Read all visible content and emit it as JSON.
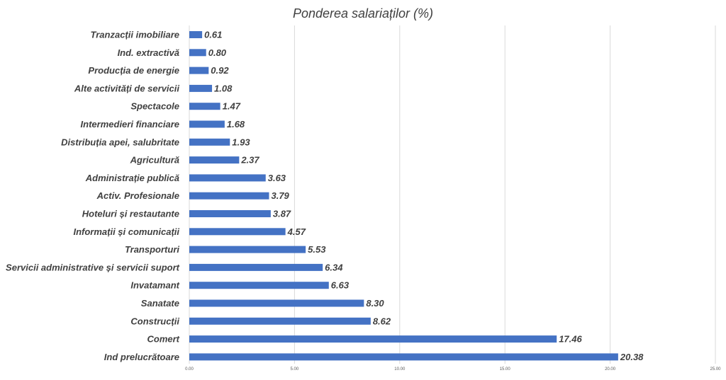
{
  "chart_data": {
    "type": "bar",
    "orientation": "horizontal",
    "title": "Ponderea salariaților (%)",
    "categories": [
      "Tranzacții imobiliare",
      "Ind. extractivă",
      "Producția de energie",
      "Alte activități de servicii",
      "Spectacole",
      "Intermedieri financiare",
      "Distribuția apei, salubritate",
      "Agricultură",
      "Administrație publică",
      "Activ. Profesionale",
      "Hoteluri și restautante",
      "Informații și comunicații",
      "Transporturi",
      "Servicii administrative și servicii suport",
      "Invatamant",
      "Sanatate",
      "Construcții",
      "Comert",
      "Ind prelucrătoare"
    ],
    "values": [
      0.61,
      0.8,
      0.92,
      1.08,
      1.47,
      1.68,
      1.93,
      2.37,
      3.63,
      3.79,
      3.87,
      4.57,
      5.53,
      6.34,
      6.63,
      8.3,
      8.62,
      17.46,
      20.38
    ],
    "value_labels": [
      "0.61",
      "0.80",
      "0.92",
      "1.08",
      "1.47",
      "1.68",
      "1.93",
      "2.37",
      "3.63",
      "3.79",
      "3.87",
      "4.57",
      "5.53",
      "6.34",
      "6.63",
      "8.30",
      "8.62",
      "17.46",
      "20.38"
    ],
    "xlim": [
      0,
      25
    ],
    "x_ticks": [
      "0.00",
      "5.00",
      "10.00",
      "15.00",
      "20.00",
      "25.00"
    ],
    "grid": true,
    "legend": "none",
    "bar_color": "#4472c4"
  }
}
